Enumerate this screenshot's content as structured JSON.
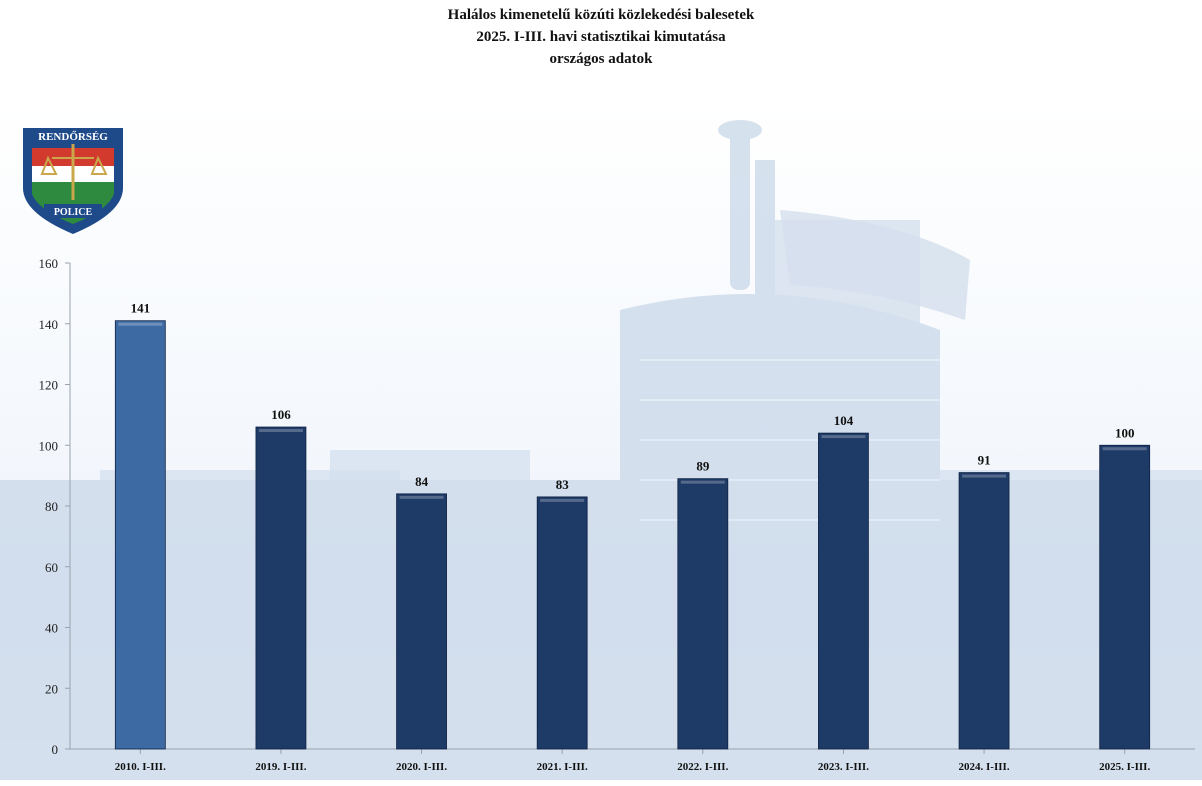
{
  "header": {
    "title": "Halálos kimenetelű közúti közlekedési balesetek",
    "subtitle": "2025. I-III. havi statisztikai kimutatása",
    "subtitle2": "országos adatok"
  },
  "logo": {
    "top_text": "RENDŐRSÉG",
    "bottom_text": "POLICE"
  },
  "colors": {
    "highlight_bar": "#3e6aa3",
    "bar": "#1e3a66",
    "axis": "#9aa3ad",
    "building": "#c3d3e6"
  },
  "chart_data": {
    "type": "bar",
    "title": "Halálos kimenetelű közúti közlekedési balesetek",
    "categories": [
      "2010. I-III.",
      "2019. I-III.",
      "2020. I-III.",
      "2021. I-III.",
      "2022. I-III.",
      "2023. I-III.",
      "2024. I-III.",
      "2025. I-III."
    ],
    "values": [
      141,
      106,
      84,
      83,
      89,
      104,
      91,
      100
    ],
    "ylim": [
      0,
      160
    ],
    "yticks": [
      0,
      20,
      40,
      60,
      80,
      100,
      120,
      140,
      160
    ],
    "grid": false,
    "legend": "none",
    "data_labels": true
  }
}
